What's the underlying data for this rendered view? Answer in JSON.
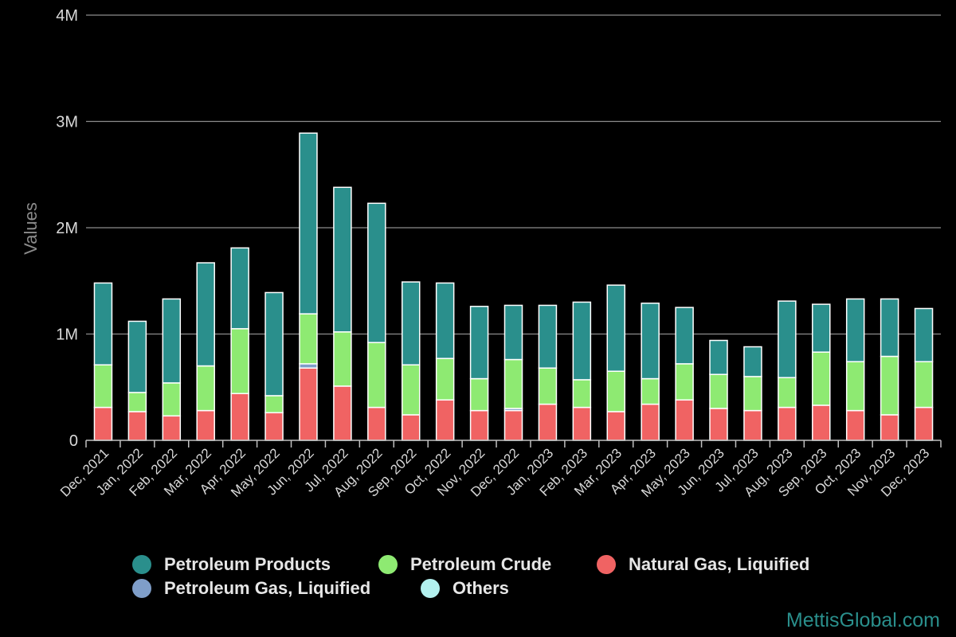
{
  "chart_data": {
    "type": "bar",
    "stacked": true,
    "title": "",
    "xlabel": "",
    "ylabel": "Values",
    "ylim": [
      0,
      4000000
    ],
    "yticks": [
      0,
      1000000,
      2000000,
      3000000,
      4000000
    ],
    "ytick_labels": [
      "0",
      "1M",
      "2M",
      "3M",
      "4M"
    ],
    "grid": true,
    "legend_position": "bottom",
    "categories": [
      "Dec, 2021",
      "Jan, 2022",
      "Feb, 2022",
      "Mar, 2022",
      "Apr, 2022",
      "May, 2022",
      "Jun, 2022",
      "Jul, 2022",
      "Aug, 2022",
      "Sep, 2022",
      "Oct, 2022",
      "Nov, 2022",
      "Dec, 2022",
      "Jan, 2023",
      "Feb, 2023",
      "Mar, 2023",
      "Apr, 2023",
      "May, 2023",
      "Jun, 2023",
      "Jul, 2023",
      "Aug, 2023",
      "Sep, 2023",
      "Oct, 2023",
      "Nov, 2023",
      "Dec, 2023"
    ],
    "series": [
      {
        "name": "Others",
        "color": "#b2f0ee",
        "values": [
          0,
          0,
          0,
          0,
          0,
          0,
          0,
          0,
          0,
          0,
          0,
          0,
          0,
          0,
          0,
          0,
          0,
          0,
          0,
          0,
          0,
          0,
          0,
          0,
          0
        ]
      },
      {
        "name": "Petroleum Gas, Liquified",
        "color": "#7f9ec9",
        "values": [
          0,
          0,
          0,
          0,
          0,
          0,
          40000,
          0,
          0,
          0,
          0,
          0,
          20000,
          0,
          0,
          0,
          0,
          0,
          0,
          0,
          0,
          0,
          0,
          0,
          0
        ]
      },
      {
        "name": "Natural Gas, Liquified",
        "color": "#f06363",
        "values": [
          310000,
          270000,
          230000,
          280000,
          440000,
          260000,
          680000,
          510000,
          310000,
          240000,
          380000,
          280000,
          280000,
          340000,
          310000,
          270000,
          340000,
          380000,
          300000,
          280000,
          310000,
          330000,
          280000,
          240000,
          310000
        ]
      },
      {
        "name": "Petroleum Crude",
        "color": "#8eea72",
        "values": [
          400000,
          180000,
          310000,
          420000,
          610000,
          160000,
          470000,
          510000,
          610000,
          470000,
          390000,
          300000,
          460000,
          340000,
          260000,
          380000,
          240000,
          340000,
          320000,
          320000,
          280000,
          500000,
          460000,
          550000,
          430000
        ]
      },
      {
        "name": "Petroleum Products",
        "color": "#2a8f8c",
        "values": [
          770000,
          670000,
          790000,
          970000,
          760000,
          970000,
          1700000,
          1360000,
          1310000,
          780000,
          710000,
          680000,
          510000,
          590000,
          730000,
          810000,
          710000,
          530000,
          320000,
          280000,
          720000,
          450000,
          590000,
          540000,
          500000
        ]
      }
    ]
  },
  "legend": {
    "rows": [
      [
        {
          "label": "Petroleum Products",
          "color": "#2a8f8c"
        },
        {
          "label": "Petroleum Crude",
          "color": "#8eea72"
        },
        {
          "label": "Natural Gas, Liquified",
          "color": "#f06363"
        }
      ],
      [
        {
          "label": "Petroleum Gas, Liquified",
          "color": "#7f9ec9"
        },
        {
          "label": "Others",
          "color": "#b2f0ee"
        }
      ]
    ]
  },
  "watermark": "MettisGlobal.com"
}
